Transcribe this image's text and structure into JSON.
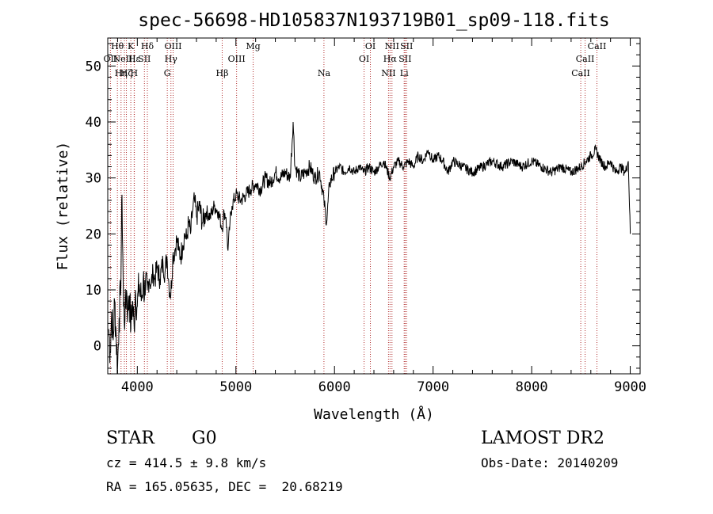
{
  "chart_data": {
    "type": "line",
    "title": "spec-56698-HD105837N193719B01_sp09-118.fits",
    "xlabel": "Wavelength (Å)",
    "ylabel": "Flux (relative)",
    "xlim": [
      3700,
      9100
    ],
    "ylim": [
      -5,
      55
    ],
    "xticks": [
      4000,
      5000,
      6000,
      7000,
      8000,
      9000
    ],
    "yticks": [
      0,
      10,
      20,
      30,
      40,
      50
    ],
    "x_minor_step": 200,
    "y_minor_step": 2,
    "grid": false,
    "series": [
      {
        "color": "#000000",
        "points": [
          [
            3710,
            3
          ],
          [
            3725,
            -1
          ],
          [
            3740,
            6
          ],
          [
            3755,
            1
          ],
          [
            3770,
            8
          ],
          [
            3785,
            2
          ],
          [
            3800,
            -4
          ],
          [
            3815,
            5
          ],
          [
            3830,
            9
          ],
          [
            3845,
            27
          ],
          [
            3860,
            7
          ],
          [
            3875,
            5
          ],
          [
            3890,
            10
          ],
          [
            3905,
            6
          ],
          [
            3920,
            9
          ],
          [
            3935,
            3
          ],
          [
            3950,
            8
          ],
          [
            3968,
            3
          ],
          [
            3980,
            10
          ],
          [
            4000,
            7
          ],
          [
            4020,
            11
          ],
          [
            4040,
            8
          ],
          [
            4060,
            12
          ],
          [
            4080,
            9
          ],
          [
            4101,
            10
          ],
          [
            4120,
            12
          ],
          [
            4140,
            11
          ],
          [
            4160,
            13
          ],
          [
            4180,
            12
          ],
          [
            4200,
            14
          ],
          [
            4230,
            12
          ],
          [
            4260,
            15
          ],
          [
            4280,
            13
          ],
          [
            4300,
            16
          ],
          [
            4320,
            11
          ],
          [
            4340,
            9
          ],
          [
            4360,
            16
          ],
          [
            4380,
            17
          ],
          [
            4400,
            19
          ],
          [
            4420,
            17
          ],
          [
            4440,
            16
          ],
          [
            4460,
            18
          ],
          [
            4480,
            20
          ],
          [
            4500,
            19
          ],
          [
            4520,
            22
          ],
          [
            4540,
            20
          ],
          [
            4560,
            24
          ],
          [
            4580,
            26
          ],
          [
            4600,
            23
          ],
          [
            4630,
            25
          ],
          [
            4660,
            22
          ],
          [
            4700,
            24
          ],
          [
            4740,
            23
          ],
          [
            4780,
            25
          ],
          [
            4820,
            24
          ],
          [
            4861,
            21
          ],
          [
            4880,
            24
          ],
          [
            4900,
            23
          ],
          [
            4920,
            17
          ],
          [
            4940,
            22
          ],
          [
            4960,
            25
          ],
          [
            5000,
            27
          ],
          [
            5050,
            26
          ],
          [
            5100,
            27
          ],
          [
            5150,
            28
          ],
          [
            5200,
            29
          ],
          [
            5250,
            28
          ],
          [
            5300,
            30
          ],
          [
            5350,
            29
          ],
          [
            5400,
            31
          ],
          [
            5450,
            30
          ],
          [
            5500,
            31
          ],
          [
            5550,
            30
          ],
          [
            5580,
            40
          ],
          [
            5600,
            32
          ],
          [
            5650,
            30
          ],
          [
            5700,
            31
          ],
          [
            5750,
            32
          ],
          [
            5800,
            30
          ],
          [
            5850,
            31
          ],
          [
            5893,
            26
          ],
          [
            5920,
            22
          ],
          [
            5950,
            29
          ],
          [
            6000,
            31
          ],
          [
            6050,
            32
          ],
          [
            6100,
            31
          ],
          [
            6150,
            32
          ],
          [
            6200,
            31
          ],
          [
            6250,
            32
          ],
          [
            6300,
            31
          ],
          [
            6350,
            32
          ],
          [
            6400,
            31
          ],
          [
            6450,
            32
          ],
          [
            6500,
            33
          ],
          [
            6563,
            30
          ],
          [
            6600,
            32
          ],
          [
            6650,
            33
          ],
          [
            6700,
            32
          ],
          [
            6750,
            33
          ],
          [
            6800,
            32
          ],
          [
            6850,
            34
          ],
          [
            6900,
            33
          ],
          [
            6950,
            35
          ],
          [
            7000,
            33
          ],
          [
            7050,
            34
          ],
          [
            7100,
            33
          ],
          [
            7150,
            31
          ],
          [
            7200,
            33
          ],
          [
            7300,
            32
          ],
          [
            7400,
            31
          ],
          [
            7500,
            32
          ],
          [
            7600,
            33
          ],
          [
            7700,
            32
          ],
          [
            7800,
            33
          ],
          [
            7900,
            32
          ],
          [
            8000,
            33
          ],
          [
            8100,
            32
          ],
          [
            8200,
            31
          ],
          [
            8300,
            32
          ],
          [
            8400,
            31
          ],
          [
            8500,
            32
          ],
          [
            8550,
            33
          ],
          [
            8600,
            34
          ],
          [
            8650,
            35
          ],
          [
            8700,
            33
          ],
          [
            8750,
            32
          ],
          [
            8800,
            33
          ],
          [
            8850,
            31
          ],
          [
            8900,
            32
          ],
          [
            8950,
            31
          ],
          [
            8980,
            33
          ],
          [
            9000,
            20
          ]
        ]
      }
    ],
    "lines": [
      {
        "x": 3727,
        "name": "OII",
        "row": 2
      },
      {
        "x": 3798,
        "name": "Hθ",
        "row": 1
      },
      {
        "x": 3835,
        "name": "Hη",
        "row": 3
      },
      {
        "x": 3869,
        "name": "NeIII",
        "row": 2
      },
      {
        "x": 3889,
        "name": "Hζ",
        "row": 3
      },
      {
        "x": 3934,
        "name": "K",
        "row": 1
      },
      {
        "x": 3968,
        "name": "H",
        "row": 3
      },
      {
        "x": 3970,
        "name": "Hε",
        "row": 2
      },
      {
        "x": 4072,
        "name": "SII",
        "row": 2
      },
      {
        "x": 4102,
        "name": "Hδ",
        "row": 1
      },
      {
        "x": 4304,
        "name": "G",
        "row": 3
      },
      {
        "x": 4341,
        "name": "Hγ",
        "row": 2
      },
      {
        "x": 4363,
        "name": "OIII",
        "row": 1
      },
      {
        "x": 4861,
        "name": "Hβ",
        "row": 3
      },
      {
        "x": 5007,
        "name": "OIII",
        "row": 2
      },
      {
        "x": 5175,
        "name": "Mg",
        "row": 1
      },
      {
        "x": 5893,
        "name": "Na",
        "row": 3
      },
      {
        "x": 6300,
        "name": "OI",
        "row": 2
      },
      {
        "x": 6364,
        "name": "OI",
        "row": 1
      },
      {
        "x": 6548,
        "name": "NII",
        "row": 3
      },
      {
        "x": 6563,
        "name": "Hα",
        "row": 2
      },
      {
        "x": 6583,
        "name": "NII",
        "row": 1
      },
      {
        "x": 6707,
        "name": "Li",
        "row": 3
      },
      {
        "x": 6716,
        "name": "SII",
        "row": 2
      },
      {
        "x": 6731,
        "name": "SII",
        "row": 1
      },
      {
        "x": 8498,
        "name": "CaII",
        "row": 3
      },
      {
        "x": 8542,
        "name": "CaII",
        "row": 2
      },
      {
        "x": 8662,
        "name": "CaII",
        "row": 1
      }
    ]
  },
  "info": {
    "obj_class": "STAR",
    "subclass": "G0",
    "survey": "LAMOST DR2",
    "redshift": "cz = 414.5 ± 9.8 km/s",
    "obs_date": "Obs-Date: 20140209",
    "coords": "RA = 165.05635, DEC =  20.68219"
  },
  "colors": {
    "spectrum": "#000000",
    "line_markers": "#b23030",
    "axes": "#000000",
    "background": "#ffffff"
  }
}
